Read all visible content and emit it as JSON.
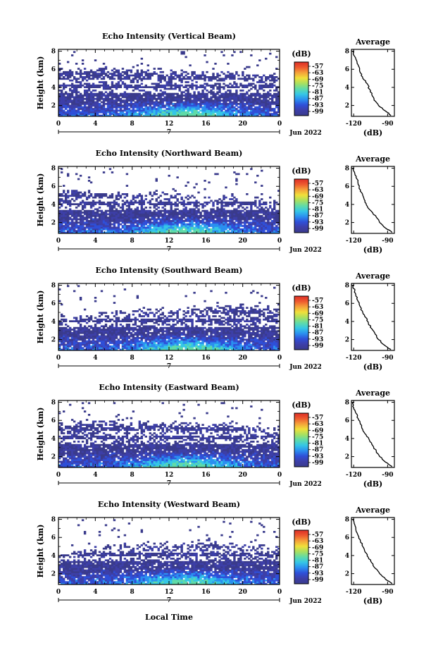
{
  "figure": {
    "bottom_xlabel": "Local Time",
    "month_label": "Jun 2022",
    "day_label": "7"
  },
  "chart_data": [
    {
      "type": "heatmap",
      "title": "Echo Intensity (Vertical Beam)",
      "ylabel": "Height (km)",
      "xticks": [
        "0",
        "4",
        "8",
        "12",
        "16",
        "20",
        "0"
      ],
      "xlim": [
        0,
        24
      ],
      "yticks": [
        "2",
        "4",
        "6",
        "8"
      ],
      "ylim": [
        0.8,
        8.2
      ],
      "top_height_km": [
        6.0,
        6.0,
        5.9,
        6.0,
        5.9,
        5.8,
        5.7,
        5.6,
        5.5,
        5.5,
        5.4,
        5.3,
        5.3
      ],
      "colorbar": {
        "label": "(dB)",
        "ticks": [
          "-57",
          "-63",
          "-69",
          "-75",
          "-81",
          "-87",
          "-93",
          "-99"
        ]
      },
      "profile": {
        "title": "Average",
        "xlabel": "(dB)",
        "xticks": [
          "-120",
          "-90"
        ],
        "xlim": [
          -122,
          -84
        ],
        "yticks": [
          "2",
          "4",
          "6",
          "8"
        ],
        "ylim": [
          0.8,
          8.2
        ],
        "height_km": [
          8.0,
          7.4,
          6.8,
          6.2,
          5.6,
          5.0,
          4.4,
          3.8,
          3.2,
          2.6,
          2.0,
          1.4,
          0.9
        ],
        "power_db": [
          -121,
          -119,
          -117,
          -115,
          -114,
          -112,
          -108,
          -106,
          -104,
          -102,
          -98,
          -92,
          -87
        ]
      }
    },
    {
      "type": "heatmap",
      "title": "Echo Intensity (Northward Beam)",
      "ylabel": "Height (km)",
      "xticks": [
        "0",
        "4",
        "8",
        "12",
        "16",
        "20",
        "0"
      ],
      "xlim": [
        0,
        24
      ],
      "yticks": [
        "2",
        "4",
        "6",
        "8"
      ],
      "ylim": [
        0.8,
        8.2
      ],
      "top_height_km": [
        5.2,
        5.5,
        5.3,
        5.2,
        5.0,
        5.1,
        5.0,
        4.9,
        4.7,
        4.8,
        4.6,
        4.6,
        4.4
      ],
      "colorbar": {
        "label": "(dB)",
        "ticks": [
          "-57",
          "-63",
          "-69",
          "-75",
          "-81",
          "-87",
          "-93",
          "-99"
        ]
      },
      "profile": {
        "title": "Average",
        "xlabel": "(dB)",
        "xticks": [
          "-120",
          "-90"
        ],
        "xlim": [
          -122,
          -84
        ],
        "yticks": [
          "2",
          "4",
          "6",
          "8"
        ],
        "ylim": [
          0.8,
          8.2
        ],
        "height_km": [
          8.0,
          7.4,
          6.8,
          6.2,
          5.6,
          5.0,
          4.4,
          3.8,
          3.2,
          2.6,
          2.0,
          1.4,
          0.9
        ],
        "power_db": [
          -121,
          -119,
          -117,
          -116,
          -114,
          -112,
          -110,
          -108,
          -104,
          -100,
          -97,
          -92,
          -86
        ]
      }
    },
    {
      "type": "heatmap",
      "title": "Echo Intensity (Southward Beam)",
      "ylabel": "Height (km)",
      "xticks": [
        "0",
        "4",
        "8",
        "12",
        "16",
        "20",
        "0"
      ],
      "xlim": [
        0,
        24
      ],
      "yticks": [
        "2",
        "4",
        "6",
        "8"
      ],
      "ylim": [
        0.8,
        8.2
      ],
      "top_height_km": [
        4.4,
        4.6,
        4.7,
        4.9,
        5.0,
        5.1,
        5.0,
        5.2,
        5.3,
        5.5,
        5.6,
        5.4,
        5.3
      ],
      "colorbar": {
        "label": "(dB)",
        "ticks": [
          "-57",
          "-63",
          "-69",
          "-75",
          "-81",
          "-87",
          "-93",
          "-99"
        ]
      },
      "profile": {
        "title": "Average",
        "xlabel": "(dB)",
        "xticks": [
          "-120",
          "-90"
        ],
        "xlim": [
          -122,
          -84
        ],
        "yticks": [
          "2",
          "4",
          "6",
          "8"
        ],
        "ylim": [
          0.8,
          8.2
        ],
        "height_km": [
          8.0,
          7.4,
          6.8,
          6.2,
          5.6,
          5.0,
          4.4,
          3.8,
          3.2,
          2.6,
          2.0,
          1.4,
          0.9
        ],
        "power_db": [
          -121,
          -119,
          -118,
          -116,
          -114,
          -112,
          -109,
          -107,
          -104,
          -101,
          -98,
          -93,
          -87
        ]
      }
    },
    {
      "type": "heatmap",
      "title": "Echo Intensity (Eastward Beam)",
      "ylabel": "Height (km)",
      "xticks": [
        "0",
        "4",
        "8",
        "12",
        "16",
        "20",
        "0"
      ],
      "xlim": [
        0,
        24
      ],
      "yticks": [
        "2",
        "4",
        "6",
        "8"
      ],
      "ylim": [
        0.8,
        8.2
      ],
      "top_height_km": [
        5.6,
        5.7,
        5.8,
        5.7,
        5.6,
        5.6,
        5.5,
        5.6,
        5.4,
        5.4,
        5.3,
        5.2,
        5.0
      ],
      "colorbar": {
        "label": "(dB)",
        "ticks": [
          "-57",
          "-63",
          "-69",
          "-75",
          "-81",
          "-87",
          "-93",
          "-99"
        ]
      },
      "profile": {
        "title": "Average",
        "xlabel": "(dB)",
        "xticks": [
          "-120",
          "-90"
        ],
        "xlim": [
          -122,
          -84
        ],
        "yticks": [
          "2",
          "4",
          "6",
          "8"
        ],
        "ylim": [
          0.8,
          8.2
        ],
        "height_km": [
          8.0,
          7.4,
          6.8,
          6.2,
          5.6,
          5.0,
          4.4,
          3.8,
          3.2,
          2.6,
          2.0,
          1.4,
          0.9
        ],
        "power_db": [
          -121,
          -120,
          -118,
          -116,
          -114,
          -112,
          -109,
          -106,
          -103,
          -100,
          -97,
          -92,
          -86
        ]
      }
    },
    {
      "type": "heatmap",
      "title": "Echo Intensity (Westward Beam)",
      "ylabel": "Height (km)",
      "xticks": [
        "0",
        "4",
        "8",
        "12",
        "16",
        "20",
        "0"
      ],
      "xlim": [
        0,
        24
      ],
      "yticks": [
        "2",
        "4",
        "6",
        "8"
      ],
      "ylim": [
        0.8,
        8.2
      ],
      "top_height_km": [
        4.2,
        4.5,
        4.7,
        4.9,
        5.0,
        5.2,
        5.0,
        5.1,
        5.4,
        5.2,
        5.0,
        4.9,
        4.8
      ],
      "colorbar": {
        "label": "(dB)",
        "ticks": [
          "-57",
          "-63",
          "-69",
          "-75",
          "-81",
          "-87",
          "-93",
          "-99"
        ]
      },
      "profile": {
        "title": "Average",
        "xlabel": "(dB)",
        "xticks": [
          "-120",
          "-90"
        ],
        "xlim": [
          -122,
          -84
        ],
        "yticks": [
          "2",
          "4",
          "6",
          "8"
        ],
        "ylim": [
          0.8,
          8.2
        ],
        "height_km": [
          8.0,
          7.4,
          6.8,
          6.2,
          5.6,
          5.0,
          4.4,
          3.8,
          3.2,
          2.6,
          2.0,
          1.4,
          0.9
        ],
        "power_db": [
          -121,
          -119,
          -118,
          -116,
          -114,
          -112,
          -110,
          -107,
          -104,
          -101,
          -97,
          -92,
          -86
        ]
      }
    }
  ],
  "colors": {
    "colormap": [
      "#3a3b8c",
      "#3d3fa8",
      "#2f4fd8",
      "#2b8ff0",
      "#35c6e6",
      "#60dba8",
      "#a8e060",
      "#f0e03a",
      "#f5a23a",
      "#ee5a2f",
      "#dd2e26"
    ],
    "background": "#ffffff",
    "axes": "#000000"
  }
}
